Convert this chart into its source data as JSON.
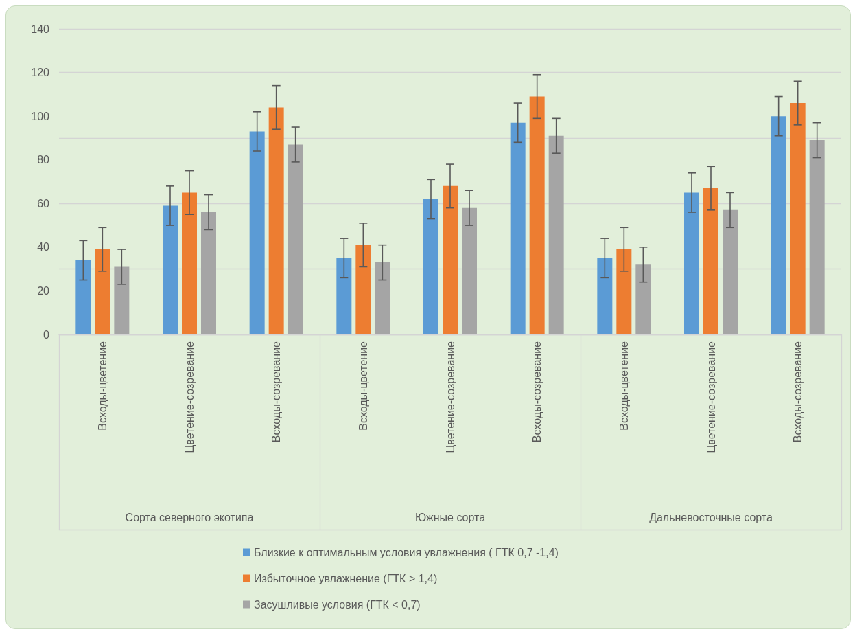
{
  "chart_data": {
    "type": "bar",
    "categories": [
      "Всходы-цветение",
      "Цветение-созревание",
      "Всходы-созревание",
      "Всходы-цветение",
      "Цветение-созревание",
      "Всходы-созревание",
      "Всходы-цветение",
      "Цветение-созревание",
      "Всходы-созревание"
    ],
    "annotations": [
      "Сорта северного экотипа",
      "Южные сорта",
      "Дальневосточные сорта"
    ],
    "series": [
      {
        "name": "Близкие к оптимальным условия увлажнения ( ГТК 0,7 -1,4)",
        "color": "#5b9bd5",
        "values": [
          34,
          59,
          93,
          35,
          62,
          97,
          35,
          65,
          100
        ],
        "errors": [
          9,
          9,
          9,
          9,
          9,
          9,
          9,
          9,
          9
        ]
      },
      {
        "name": "Избыточное увлажнение (ГТК > 1,4)",
        "color": "#ed7d31",
        "values": [
          39,
          65,
          104,
          41,
          68,
          109,
          39,
          67,
          106
        ],
        "errors": [
          10,
          10,
          10,
          10,
          10,
          10,
          10,
          10,
          10
        ]
      },
      {
        "name": "Засушливые условия (ГТК < 0,7)",
        "color": "#a5a5a5",
        "values": [
          31,
          56,
          87,
          33,
          58,
          91,
          32,
          57,
          89
        ],
        "errors": [
          8,
          8,
          8,
          8,
          8,
          8,
          8,
          8,
          8
        ]
      }
    ],
    "ylim": [
      0,
      140
    ],
    "yticks": [
      0,
      20,
      40,
      60,
      80,
      100,
      120,
      140
    ],
    "grid": "y",
    "legend": "bottom"
  }
}
